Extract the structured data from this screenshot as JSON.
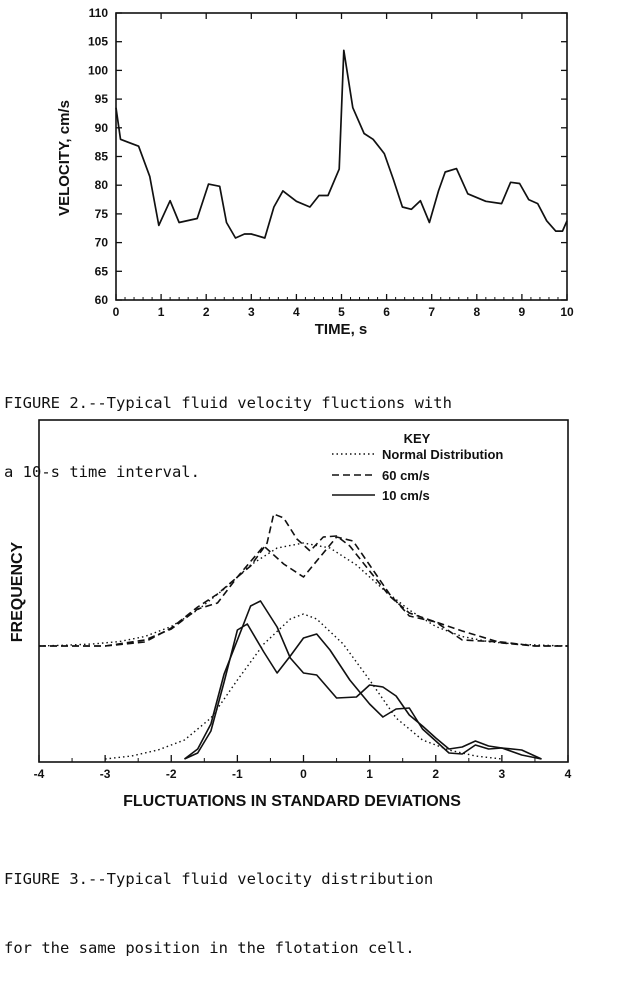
{
  "figure2": {
    "caption_line1": "FIGURE 2.--Typical fluid velocity fluctions with",
    "caption_line2": "a 10-s time interval."
  },
  "figure3": {
    "caption_line1": "FIGURE 3.--Typical fluid velocity distribution",
    "caption_line2": "for the same position in the flotation cell."
  },
  "chart_data": [
    {
      "type": "line",
      "xlabel": "TIME, s",
      "ylabel": "VELOCITY, cm/s",
      "xlim": [
        0,
        10
      ],
      "ylim": [
        60,
        110
      ],
      "xticks": [
        "0",
        "1",
        "2",
        "3",
        "4",
        "5",
        "6",
        "7",
        "8",
        "9",
        "10"
      ],
      "yticks": [
        "60",
        "65",
        "70",
        "75",
        "80",
        "85",
        "90",
        "95",
        "100",
        "105",
        "110"
      ],
      "grid": false,
      "series": [
        {
          "x": [
            0,
            0.1,
            0.5,
            0.75,
            0.95,
            1.2,
            1.4,
            1.8,
            2.05,
            2.3,
            2.45,
            2.65,
            2.85,
            3.0,
            3.3,
            3.5,
            3.7,
            4.0,
            4.3,
            4.5,
            4.7,
            4.95,
            5.05,
            5.25,
            5.5,
            5.7,
            5.95,
            6.15,
            6.35,
            6.55,
            6.75,
            6.95,
            7.15,
            7.3,
            7.55,
            7.8,
            8.2,
            8.55,
            8.75,
            8.95,
            9.15,
            9.35,
            9.55,
            9.75,
            9.9,
            10.0
          ],
          "y": [
            93.5,
            88,
            86.8,
            81.5,
            73,
            77.3,
            73.5,
            74.2,
            80.2,
            79.8,
            73.5,
            70.8,
            71.5,
            71.5,
            70.8,
            76.2,
            79,
            77.2,
            76.2,
            78.2,
            78.2,
            82.8,
            103.5,
            93.5,
            89,
            88,
            85.5,
            81,
            76.2,
            75.8,
            77.3,
            73.5,
            79,
            82.3,
            82.9,
            78.5,
            77.2,
            76.8,
            80.5,
            80.3,
            77.5,
            76.8,
            73.8,
            72,
            72,
            73.8
          ],
          "color": "#111111"
        }
      ]
    },
    {
      "type": "line",
      "xlabel": "FLUCTUATIONS IN STANDARD DEVIATIONS",
      "ylabel": "FREQUENCY",
      "xlim": [
        -4,
        4
      ],
      "xticks": [
        "-4",
        "-3",
        "-2",
        "-1",
        "0",
        "1",
        "2",
        "3",
        "4"
      ],
      "legend": {
        "title": "KEY",
        "position": "top-right",
        "entries": [
          "Normal Distribution",
          "60 cm/s",
          "10 cm/s"
        ]
      },
      "series": [
        {
          "name": "Normal Distribution",
          "style": "dotted",
          "group": "upper",
          "x": [
            -4.0,
            -3.6,
            -3.2,
            -2.8,
            -2.4,
            -2.0,
            -1.6,
            -1.2,
            -0.8,
            -0.4,
            0.0,
            0.4,
            0.8,
            1.2,
            1.6,
            2.0,
            2.4,
            2.8,
            3.2,
            3.6,
            4.0
          ],
          "y": [
            0.0,
            0.8,
            2.0,
            4.3,
            9.5,
            19.5,
            36,
            57,
            81,
            98,
            103,
            98,
            81,
            57,
            36,
            19.5,
            9.5,
            4.3,
            2.0,
            0.8,
            0.0
          ]
        },
        {
          "name": "60 cm/s",
          "style": "dashed",
          "group": "upper",
          "curve": "a",
          "x": [
            -4.0,
            -3.0,
            -2.4,
            -2.0,
            -1.6,
            -1.3,
            -1.0,
            -0.8,
            -0.55,
            -0.45,
            -0.3,
            -0.1,
            0.1,
            0.3,
            0.5,
            0.7,
            1.0,
            1.3,
            1.6,
            2.0,
            2.4,
            3.0,
            3.5,
            4.0
          ],
          "y": [
            0,
            0,
            4,
            18,
            39,
            52,
            69,
            80,
            103,
            132,
            128,
            107,
            95,
            109,
            110,
            100,
            75,
            50,
            33,
            24,
            15,
            3,
            0,
            0
          ]
        },
        {
          "name": "60 cm/s",
          "style": "dashed",
          "group": "upper",
          "curve": "b",
          "x": [
            -4.0,
            -3.0,
            -2.4,
            -2.0,
            -1.6,
            -1.3,
            -1.0,
            -0.6,
            -0.3,
            0.0,
            0.25,
            0.5,
            0.75,
            1.0,
            1.3,
            1.6,
            2.0,
            2.4,
            3.0,
            3.5,
            4.0
          ],
          "y": [
            0,
            0,
            6,
            17,
            37,
            43,
            69,
            100,
            82,
            69,
            89,
            109,
            105,
            81,
            52,
            30,
            24,
            6,
            4,
            0,
            0
          ]
        },
        {
          "name": "Normal Distribution",
          "style": "dotted",
          "group": "lower",
          "x": [
            -3.0,
            -2.6,
            -2.2,
            -1.8,
            -1.4,
            -1.0,
            -0.6,
            -0.2,
            0.0,
            0.2,
            0.6,
            1.0,
            1.4,
            1.8,
            2.2,
            2.6,
            3.0
          ],
          "y": [
            0,
            3,
            9,
            19,
            41,
            79,
            115,
            140,
            145,
            140,
            115,
            79,
            41,
            19,
            9,
            3,
            0
          ]
        },
        {
          "name": "10 cm/s",
          "style": "solid",
          "group": "lower",
          "curve": "a",
          "x": [
            -1.8,
            -1.6,
            -1.4,
            -1.2,
            -1.0,
            -0.8,
            -0.65,
            -0.4,
            -0.2,
            0.0,
            0.2,
            0.5,
            0.8,
            1.0,
            1.2,
            1.4,
            1.6,
            1.8,
            2.0,
            2.2,
            2.4,
            2.6,
            2.8,
            3.0,
            3.3,
            3.6
          ],
          "y": [
            0,
            10,
            35,
            85,
            119,
            153,
            158,
            132,
            101,
            86,
            84,
            61,
            62,
            74,
            72,
            63,
            44,
            33,
            21,
            10,
            12,
            18,
            13,
            11,
            4,
            0
          ]
        },
        {
          "name": "10 cm/s",
          "style": "solid",
          "group": "lower",
          "curve": "b",
          "x": [
            -1.8,
            -1.6,
            -1.4,
            -1.2,
            -1.0,
            -0.85,
            -0.6,
            -0.4,
            -0.2,
            0.0,
            0.2,
            0.4,
            0.7,
            1.0,
            1.2,
            1.4,
            1.6,
            1.8,
            2.0,
            2.2,
            2.4,
            2.6,
            2.8,
            3.0,
            3.3,
            3.6
          ],
          "y": [
            0,
            6,
            28,
            77,
            129,
            135,
            107,
            86,
            103,
            121,
            125,
            109,
            79,
            55,
            42,
            50,
            51,
            30,
            18,
            6,
            5,
            14,
            10,
            11,
            9,
            0
          ]
        }
      ]
    }
  ]
}
